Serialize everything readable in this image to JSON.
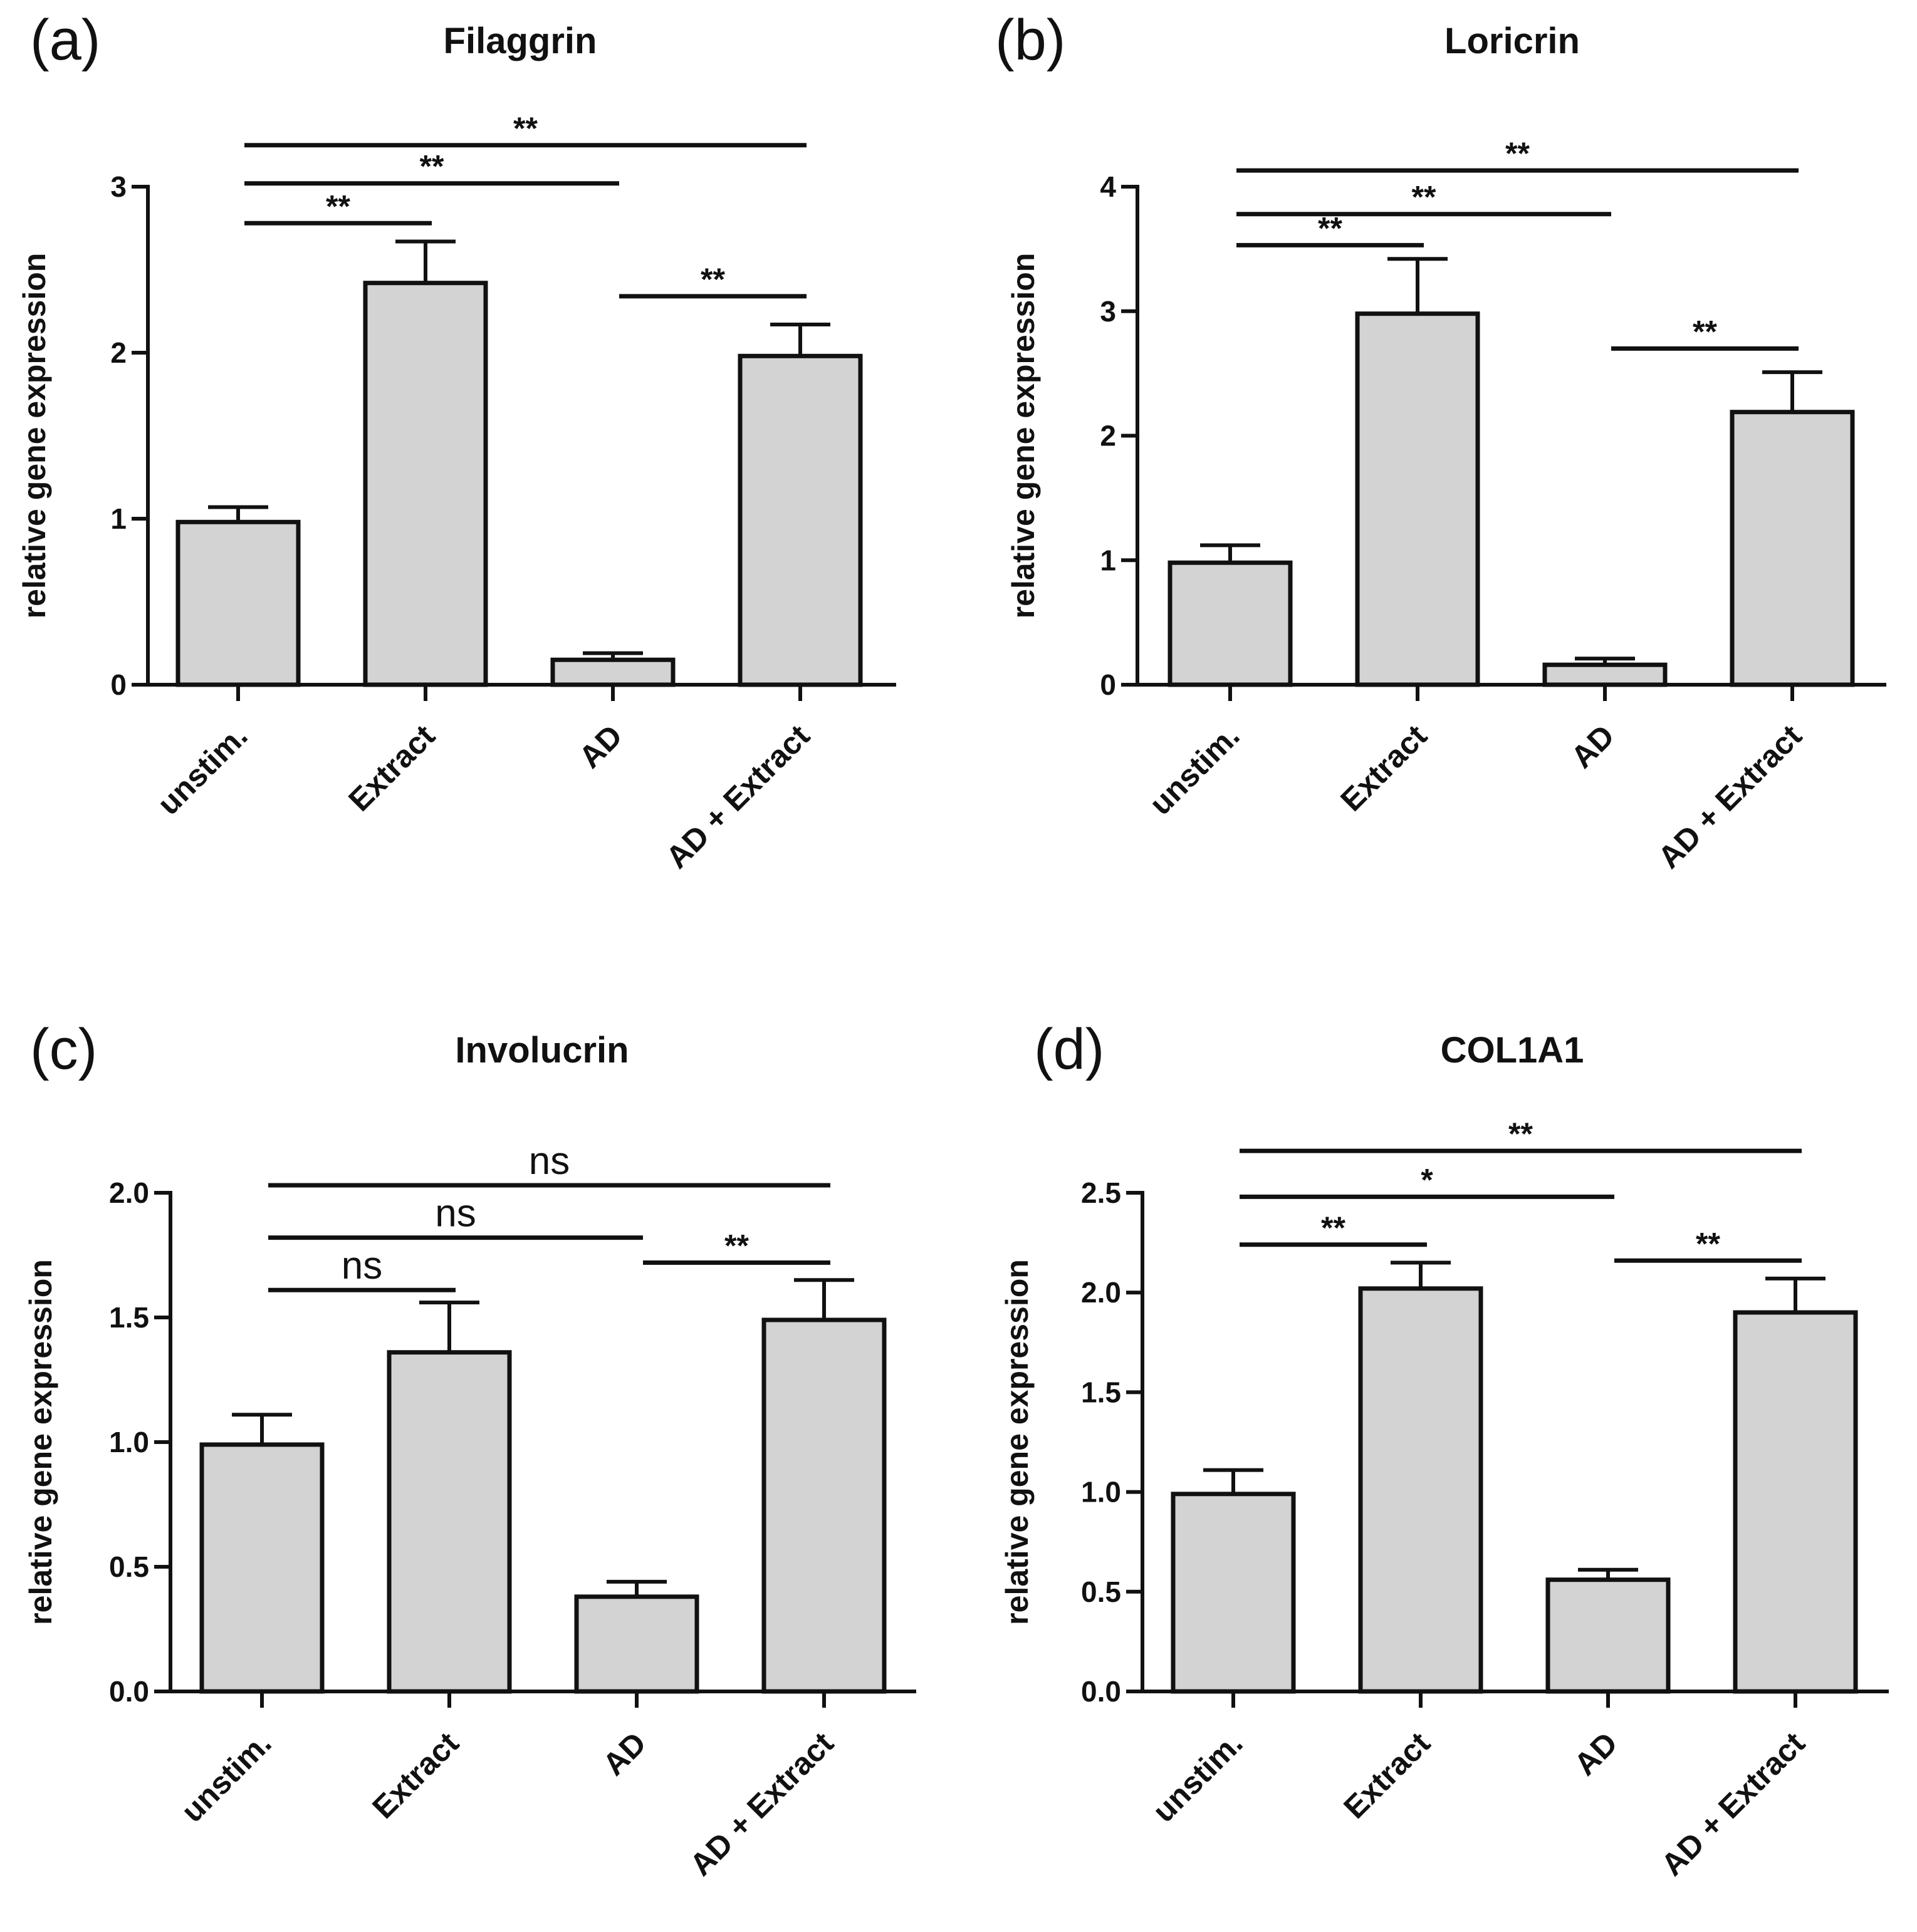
{
  "chart_data": [
    {
      "type": "bar",
      "panel_label": "(a)",
      "title": "Filaggrin",
      "xlabel": "",
      "ylabel": "relative gene expression",
      "categories": [
        "unstim.",
        "Extract",
        "AD",
        "AD + Extract"
      ],
      "values": [
        0.98,
        2.42,
        0.15,
        1.98
      ],
      "errors": [
        0.09,
        0.25,
        0.04,
        0.19
      ],
      "ylim": [
        0,
        3
      ],
      "yticks": [
        0,
        1,
        2,
        3
      ],
      "ytick_labels": [
        "0",
        "1",
        "2",
        "3"
      ],
      "significance": [
        {
          "from": 0,
          "to": 1,
          "label": "**",
          "y": 2.78
        },
        {
          "from": 0,
          "to": 2,
          "label": "**",
          "y": 3.02
        },
        {
          "from": 0,
          "to": 3,
          "label": "**",
          "y": 3.25
        },
        {
          "from": 2,
          "to": 3,
          "label": "**",
          "y": 2.34
        }
      ]
    },
    {
      "type": "bar",
      "panel_label": "(b)",
      "title": "Loricrin",
      "xlabel": "",
      "ylabel": "relative gene expression",
      "categories": [
        "unstim.",
        "Extract",
        "AD",
        "AD + Extract"
      ],
      "values": [
        0.98,
        2.98,
        0.16,
        2.19
      ],
      "errors": [
        0.14,
        0.44,
        0.05,
        0.32
      ],
      "ylim": [
        0,
        4
      ],
      "yticks": [
        0,
        1,
        2,
        3,
        4
      ],
      "ytick_labels": [
        "0",
        "1",
        "2",
        "3",
        "4"
      ],
      "significance": [
        {
          "from": 0,
          "to": 1,
          "label": "**",
          "y": 3.53
        },
        {
          "from": 0,
          "to": 2,
          "label": "**",
          "y": 3.78
        },
        {
          "from": 0,
          "to": 3,
          "label": "**",
          "y": 4.13
        },
        {
          "from": 2,
          "to": 3,
          "label": "**",
          "y": 2.7
        }
      ]
    },
    {
      "type": "bar",
      "panel_label": "(c)",
      "title": "Involucrin",
      "xlabel": "",
      "ylabel": "relative gene expression",
      "categories": [
        "unstim.",
        "Extract",
        "AD",
        "AD + Extract"
      ],
      "values": [
        0.99,
        1.36,
        0.38,
        1.49
      ],
      "errors": [
        0.12,
        0.2,
        0.06,
        0.16
      ],
      "ylim": [
        0,
        2.0
      ],
      "yticks": [
        0,
        0.5,
        1.0,
        1.5,
        2.0
      ],
      "ytick_labels": [
        "0.0",
        "0.5",
        "1.0",
        "1.5",
        "2.0"
      ],
      "significance": [
        {
          "from": 0,
          "to": 1,
          "label": "ns",
          "y": 1.61
        },
        {
          "from": 0,
          "to": 2,
          "label": "ns",
          "y": 1.82
        },
        {
          "from": 0,
          "to": 3,
          "label": "ns",
          "y": 2.03
        },
        {
          "from": 2,
          "to": 3,
          "label": "**",
          "y": 1.72
        }
      ]
    },
    {
      "type": "bar",
      "panel_label": "(d)",
      "title": "COL1A1",
      "xlabel": "",
      "ylabel": "relative gene expression",
      "categories": [
        "unstim.",
        "Extract",
        "AD",
        "AD + Extract"
      ],
      "values": [
        0.99,
        2.02,
        0.56,
        1.9
      ],
      "errors": [
        0.12,
        0.13,
        0.05,
        0.17
      ],
      "ylim": [
        0,
        2.5
      ],
      "yticks": [
        0,
        0.5,
        1.0,
        1.5,
        2.0,
        2.5
      ],
      "ytick_labels": [
        "0.0",
        "0.5",
        "1.0",
        "1.5",
        "2.0",
        "2.5"
      ],
      "significance": [
        {
          "from": 0,
          "to": 1,
          "label": "**",
          "y": 2.24
        },
        {
          "from": 0,
          "to": 2,
          "label": "*",
          "y": 2.48
        },
        {
          "from": 0,
          "to": 3,
          "label": "**",
          "y": 2.71
        },
        {
          "from": 2,
          "to": 3,
          "label": "**",
          "y": 2.16
        }
      ]
    }
  ]
}
